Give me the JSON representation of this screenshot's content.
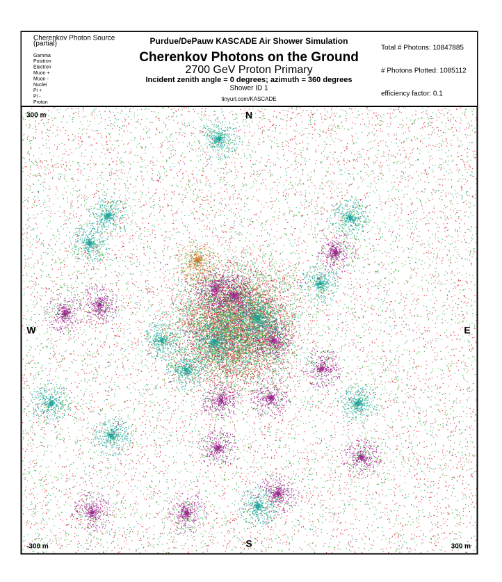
{
  "header": {
    "source_title": "Cherenkov Photon Source",
    "source_subtitle": "(partial)",
    "legend": [
      {
        "label": "Gamma",
        "color": "#000000"
      },
      {
        "label": "Positron",
        "color": "#e0202a"
      },
      {
        "label": "Electron",
        "color": "#30b030"
      },
      {
        "label": "Muon +",
        "color": "#a01090"
      },
      {
        "label": "Muon -",
        "color": "#10a0a0"
      },
      {
        "label": "Nuclei",
        "color": "#e8d020"
      },
      {
        "label": "Pi +",
        "color": "#901060"
      },
      {
        "label": "Pi -",
        "color": "#508050"
      },
      {
        "label": "Proton",
        "color": "#e07010"
      }
    ],
    "program": "Purdue/DePauw KASCADE Air Shower Simulation",
    "title": "Cherenkov Photons on the Ground",
    "primary": "2700 GeV Proton Primary",
    "angles": "Incident zenith angle =  0 degrees;  azimuth =  360 degrees",
    "shower_id": "Shower ID 1",
    "url": "tinyurl.com/KASCADE",
    "total_photons": "Total # Photons: 10847885",
    "photons_plotted": "# Photons Plotted: 1085112",
    "efficiency": "efficiency factor: 0.1"
  },
  "plot": {
    "top_left": "300 m",
    "north": "N",
    "west": "W",
    "east": "E",
    "bottom_left": "-300 m",
    "south": "S",
    "bottom_right": "300 m"
  }
}
